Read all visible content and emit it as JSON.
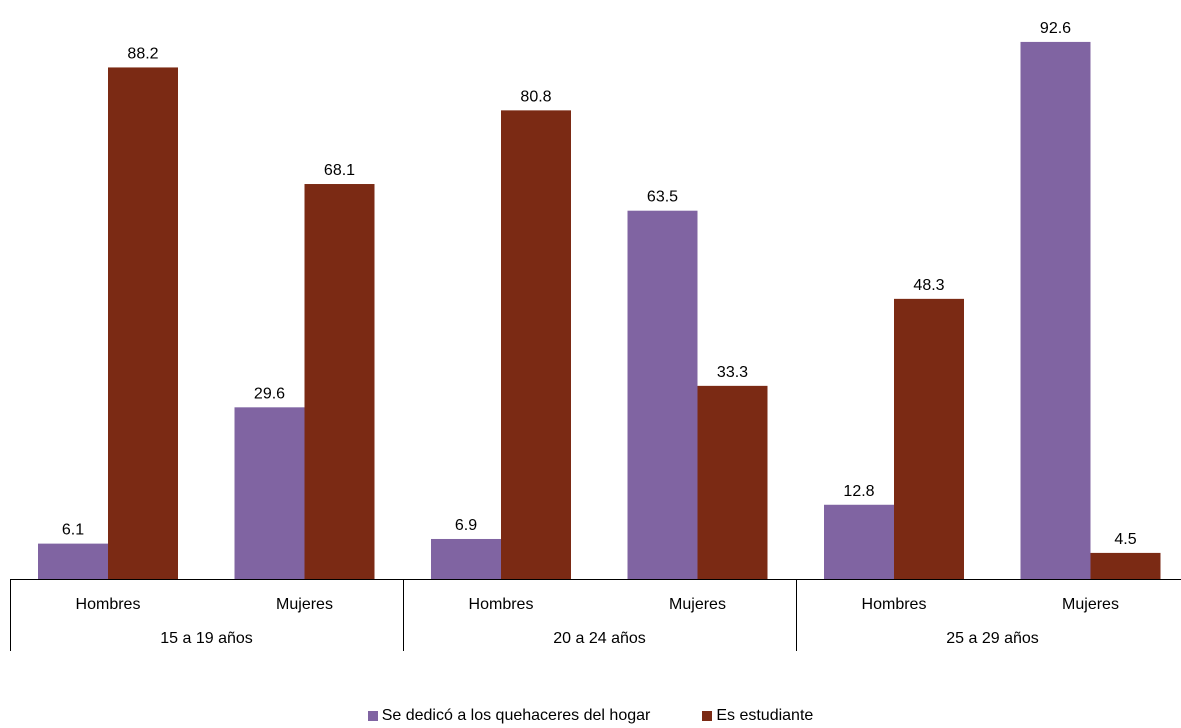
{
  "chart_data": {
    "type": "bar",
    "groups": [
      {
        "label": "15 a 19 años",
        "categories": [
          "Hombres",
          "Mujeres"
        ]
      },
      {
        "label": "20 a 24 años",
        "categories": [
          "Hombres",
          "Mujeres"
        ]
      },
      {
        "label": "25 a 29 años",
        "categories": [
          "Hombres",
          "Mujeres"
        ]
      }
    ],
    "series": [
      {
        "name": "Se dedicó a los quehaceres del hogar",
        "color": "#8064A2",
        "values": [
          6.1,
          29.6,
          6.9,
          63.5,
          12.8,
          92.6
        ]
      },
      {
        "name": "Es estudiante",
        "color": "#7B2A14",
        "values": [
          88.2,
          68.1,
          80.8,
          33.3,
          48.3,
          4.5
        ]
      }
    ],
    "value_labels": {
      "series0": [
        "6.1",
        "29.6",
        "6.9",
        "63.5",
        "12.8",
        "92.6"
      ],
      "series1": [
        "88.2",
        "68.1",
        "80.8",
        "33.3",
        "48.3",
        "4.5"
      ]
    },
    "ylim": [
      0,
      100
    ],
    "grid": false,
    "legend_position": "bottom"
  }
}
